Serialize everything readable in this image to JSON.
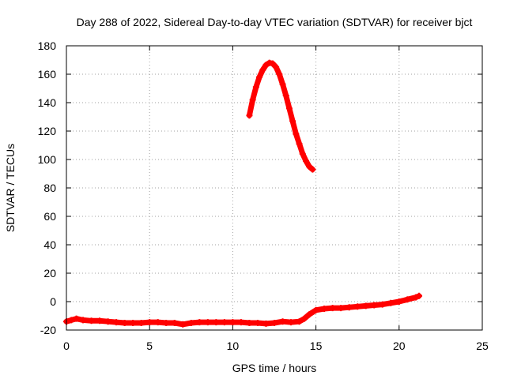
{
  "chart_data": {
    "type": "line",
    "title": "Day 288 of 2022, Sidereal Day-to-day VTEC variation (SDTVAR) for receiver bjct",
    "xlabel": "GPS time / hours",
    "ylabel": "SDTVAR / TECUs",
    "xlim": [
      0,
      25
    ],
    "ylim": [
      -20,
      180
    ],
    "xticks": [
      "0",
      "5",
      "10",
      "15",
      "20",
      "25"
    ],
    "yticks": [
      "-20",
      "0",
      "20",
      "40",
      "60",
      "80",
      "100",
      "120",
      "140",
      "160",
      "180"
    ],
    "grid": true,
    "legend": "none",
    "series": [
      {
        "color": "#ff0000",
        "x": [
          0.0,
          0.3,
          0.6,
          1.0,
          1.5,
          2.0,
          2.5,
          3.0,
          3.5,
          4.0,
          4.5,
          5.0,
          5.5,
          6.0,
          6.5,
          7.0,
          7.5,
          8.0,
          8.5,
          9.0,
          9.5,
          10.0,
          10.5,
          11.0,
          11.5,
          12.0,
          12.5,
          13.0,
          13.5,
          14.0,
          14.3,
          14.6,
          15.0,
          15.5,
          16.0,
          16.5,
          17.0,
          17.5,
          18.0,
          18.5,
          19.0,
          19.5,
          20.0,
          20.5,
          21.0,
          21.2
        ],
        "y": [
          -14,
          -13,
          -12,
          -13,
          -13.5,
          -13.5,
          -14,
          -14.5,
          -15,
          -15,
          -15,
          -14.5,
          -14.5,
          -15,
          -15,
          -16,
          -15,
          -14.5,
          -14.5,
          -14.5,
          -14.5,
          -14.5,
          -14.5,
          -15,
          -15,
          -15.5,
          -15,
          -14,
          -14.5,
          -14,
          -12,
          -9,
          -6,
          -5,
          -4.5,
          -4.5,
          -4,
          -3.5,
          -3,
          -2.5,
          -2,
          -1,
          0,
          1.5,
          3,
          4
        ]
      },
      {
        "color": "#ff0000",
        "x": [
          11.0,
          11.2,
          11.4,
          11.6,
          11.8,
          12.0,
          12.2,
          12.4,
          12.6,
          12.8,
          13.0,
          13.2,
          13.4,
          13.6,
          13.8,
          14.0,
          14.2,
          14.4,
          14.6,
          14.8
        ],
        "y": [
          131,
          142,
          151,
          158,
          163,
          166.5,
          168,
          167.5,
          165,
          160,
          153,
          145,
          136,
          127,
          118,
          111,
          104,
          99,
          95,
          93
        ]
      }
    ]
  }
}
